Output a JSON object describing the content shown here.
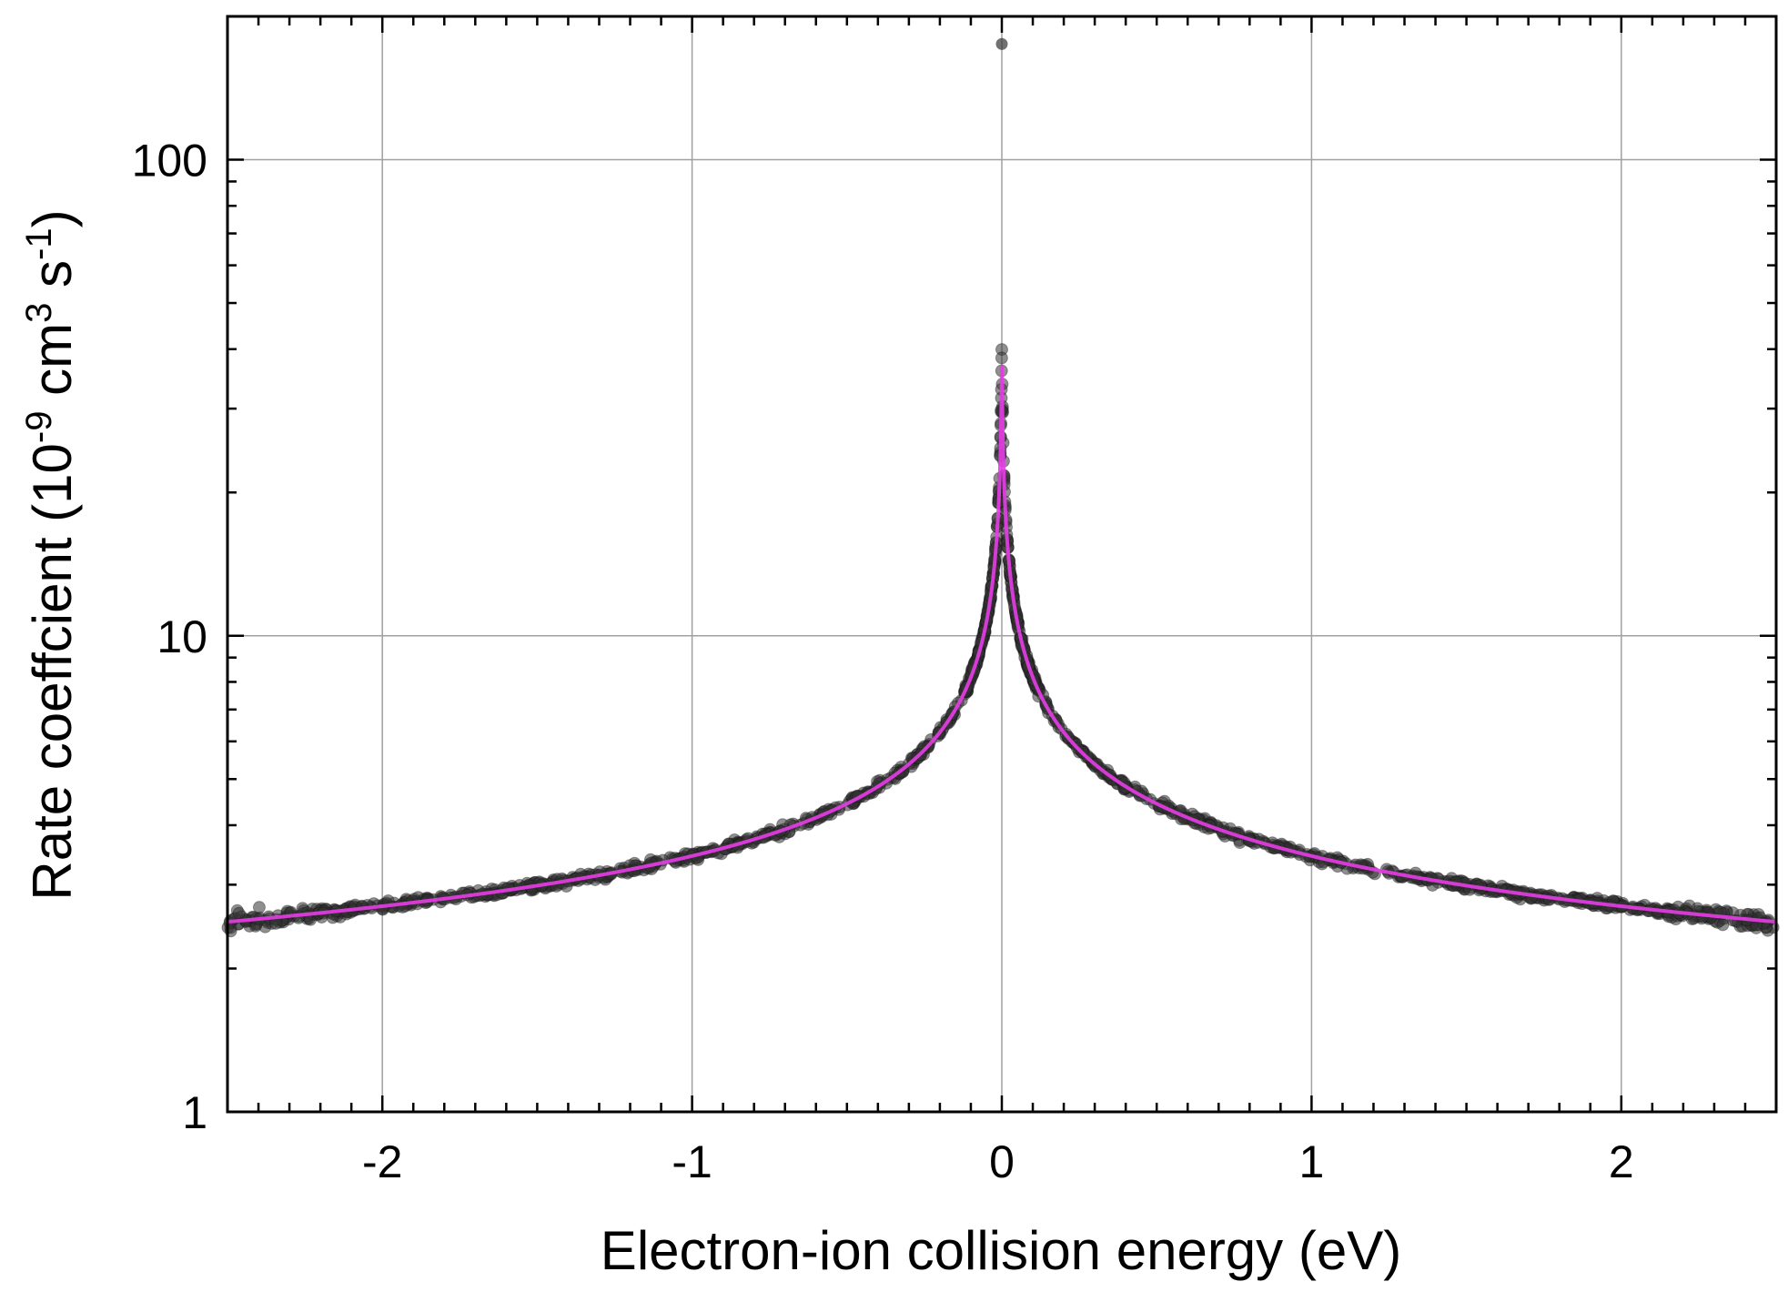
{
  "chart_data": {
    "type": "scatter",
    "xlabel": "Electron-ion collision energy (eV)",
    "ylabel": {
      "prefix": "Rate coeffcient (10",
      "exp1": "-9",
      "mid": " cm",
      "exp2": "3",
      "mid2": " s",
      "exp3": "-1",
      "suffix": ")"
    },
    "xlim": [
      -2.5,
      2.5
    ],
    "ylim": [
      1,
      200
    ],
    "yscale": "log",
    "grid": true,
    "x_ticks": [
      -2,
      -1,
      0,
      1,
      2
    ],
    "x_tick_labels": [
      "-2",
      "-1",
      "0",
      "1",
      "2"
    ],
    "y_ticks": [
      1,
      10,
      100
    ],
    "y_tick_labels": [
      "1",
      "10",
      "100"
    ],
    "series": [
      {
        "kind": "scatter",
        "color": "#333333",
        "description_points": [
          [
            -2.5,
            2.0
          ],
          [
            -2.3,
            2.2
          ],
          [
            -2.0,
            2.4
          ],
          [
            -1.8,
            2.5
          ],
          [
            -1.5,
            2.7
          ],
          [
            -1.2,
            3.0
          ],
          [
            -1.0,
            3.25
          ],
          [
            -0.8,
            3.6
          ],
          [
            -0.6,
            4.1
          ],
          [
            -0.5,
            4.45
          ],
          [
            -0.4,
            4.9
          ],
          [
            -0.3,
            5.6
          ],
          [
            -0.2,
            6.6
          ],
          [
            -0.15,
            7.6
          ],
          [
            -0.1,
            9.3
          ],
          [
            -0.07,
            11.2
          ],
          [
            -0.05,
            13.0
          ],
          [
            -0.03,
            16.5
          ],
          [
            -0.02,
            21.0
          ],
          [
            -0.01,
            28.0
          ],
          [
            0.0,
            38.0
          ],
          [
            0.0,
            175.0
          ],
          [
            0.01,
            28.0
          ],
          [
            0.02,
            21.0
          ],
          [
            0.03,
            16.5
          ],
          [
            0.05,
            13.0
          ],
          [
            0.07,
            11.2
          ],
          [
            0.1,
            9.3
          ],
          [
            0.15,
            7.6
          ],
          [
            0.2,
            6.6
          ],
          [
            0.3,
            5.6
          ],
          [
            0.4,
            4.9
          ],
          [
            0.5,
            4.45
          ],
          [
            0.6,
            4.1
          ],
          [
            0.8,
            3.6
          ],
          [
            1.0,
            3.25
          ],
          [
            1.2,
            3.0
          ],
          [
            1.5,
            2.7
          ],
          [
            1.8,
            2.5
          ],
          [
            2.0,
            2.4
          ],
          [
            2.3,
            2.2
          ],
          [
            2.5,
            2.0
          ]
        ]
      },
      {
        "kind": "line",
        "color": "#e83ce8",
        "fit_description": "symmetric fit curve peaking near 48 at 0 eV"
      }
    ]
  }
}
